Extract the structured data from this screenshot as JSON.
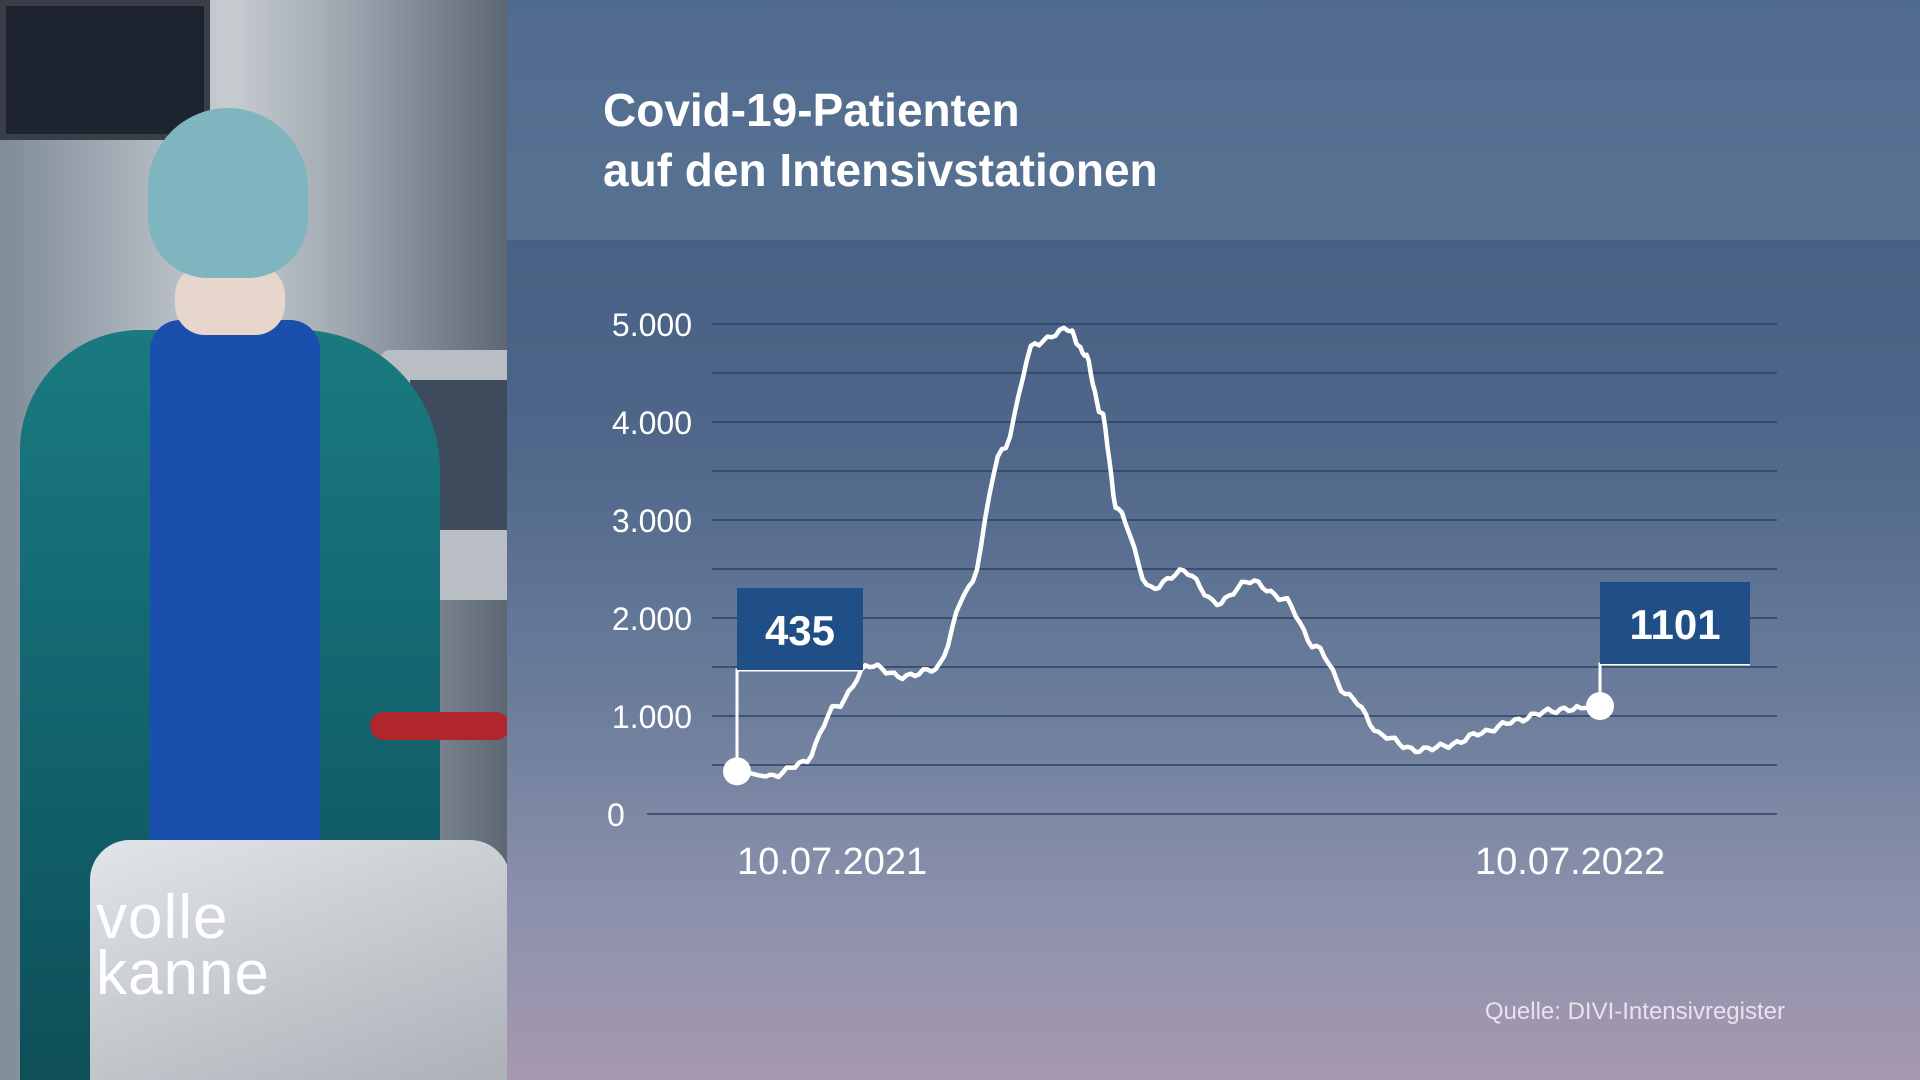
{
  "header": {
    "title_line1": "Covid-19-Patienten",
    "title_line2": "auf den Intensivstationen"
  },
  "brand": {
    "line1": "volle",
    "line2": "kanne"
  },
  "source": "Quelle: DIVI-Intensivregister",
  "colors": {
    "accent_box": "#1f4f86",
    "line": "#ffffff",
    "panel": "#4e6689"
  },
  "chart_data": {
    "type": "line",
    "title": "Covid-19-Patienten auf den Intensivstationen",
    "xlabel": "",
    "ylabel": "",
    "ylim": [
      0,
      5000
    ],
    "yticks": [
      "0",
      "1.000",
      "2.000",
      "3.000",
      "4.000",
      "5.000"
    ],
    "xtick_labels": [
      "10.07.2021",
      "10.07.2022"
    ],
    "x_range": [
      "2021-07-10",
      "2022-07-10"
    ],
    "grid": true,
    "series": [
      {
        "x": [
          "2021-07-10",
          "2021-07-24",
          "2021-08-07",
          "2021-08-21",
          "2021-09-04",
          "2021-09-18",
          "2021-10-02",
          "2021-10-16",
          "2021-10-30",
          "2021-11-13",
          "2021-11-27",
          "2021-12-04",
          "2021-12-11",
          "2021-12-18",
          "2022-01-01",
          "2022-01-15",
          "2022-01-29",
          "2022-02-12",
          "2022-02-26",
          "2022-03-12",
          "2022-03-26",
          "2022-04-09",
          "2022-04-23",
          "2022-05-07",
          "2022-05-21",
          "2022-06-04",
          "2022-06-18",
          "2022-07-02",
          "2022-07-10"
        ],
        "values": [
          435,
          380,
          520,
          1100,
          1520,
          1400,
          1480,
          2300,
          3700,
          4800,
          4950,
          4700,
          4100,
          3100,
          2300,
          2480,
          2150,
          2380,
          2200,
          1700,
          1200,
          800,
          650,
          700,
          830,
          950,
          1050,
          1080,
          1101
        ]
      }
    ],
    "annotations": [
      {
        "x": "2021-07-10",
        "value": 435,
        "label": "435"
      },
      {
        "x": "2022-07-10",
        "value": 1101,
        "label": "1101"
      }
    ]
  }
}
